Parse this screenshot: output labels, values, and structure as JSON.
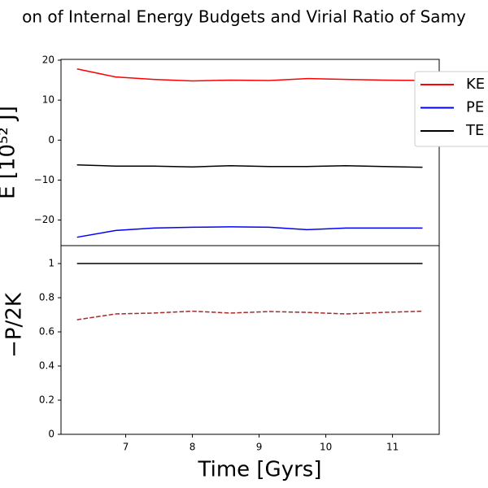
{
  "chart_data": [
    {
      "type": "line",
      "title": "on of Internal Energy Budgets and Virial Ratio of Samy",
      "ylabel": "E [10⁵² J]",
      "x": [
        6.27,
        6.85,
        7.42,
        8.0,
        8.57,
        9.15,
        9.72,
        10.3,
        10.87,
        11.45
      ],
      "xlim": [
        6.03,
        11.7
      ],
      "ylim": [
        -26.4,
        20.2
      ],
      "yticks": [
        {
          "value": -20,
          "label": "−20"
        },
        {
          "value": -10,
          "label": "−10"
        },
        0,
        10,
        20
      ],
      "legend": "upper right",
      "series": [
        {
          "name": "KE",
          "color": "#ff0000",
          "values": [
            17.8,
            15.8,
            15.2,
            14.8,
            15.0,
            14.9,
            15.4,
            15.2,
            15.0,
            14.9
          ]
        },
        {
          "name": "PE",
          "color": "#0000ff",
          "values": [
            -24.3,
            -22.6,
            -22.0,
            -21.8,
            -21.7,
            -21.8,
            -22.4,
            -22.0,
            -22.0,
            -22.0
          ]
        },
        {
          "name": "TE",
          "color": "#000000",
          "values": [
            -6.2,
            -6.5,
            -6.5,
            -6.7,
            -6.4,
            -6.6,
            -6.6,
            -6.4,
            -6.6,
            -6.8
          ]
        }
      ]
    },
    {
      "type": "line",
      "ylabel": "−P/2K",
      "xlabel": "Time [Gyrs]",
      "x": [
        6.27,
        6.85,
        7.42,
        8.0,
        8.57,
        9.15,
        9.72,
        10.3,
        10.87,
        11.45
      ],
      "xlim": [
        6.03,
        11.7
      ],
      "xticks": [
        7,
        8,
        9,
        10,
        11
      ],
      "ylim": [
        0,
        1.105
      ],
      "yticks": [
        0.0,
        0.2,
        0.4,
        0.6,
        0.8,
        1.0
      ],
      "series": [
        {
          "color": "#000000",
          "dash": false,
          "values": [
            1.0,
            1.0,
            1.0,
            1.0,
            1.0,
            1.0,
            1.0,
            1.0,
            1.0,
            1.0
          ]
        },
        {
          "color": "#a52a2a",
          "dash": true,
          "values": [
            0.671,
            0.705,
            0.71,
            0.721,
            0.71,
            0.719,
            0.714,
            0.705,
            0.714,
            0.721
          ]
        }
      ]
    }
  ]
}
